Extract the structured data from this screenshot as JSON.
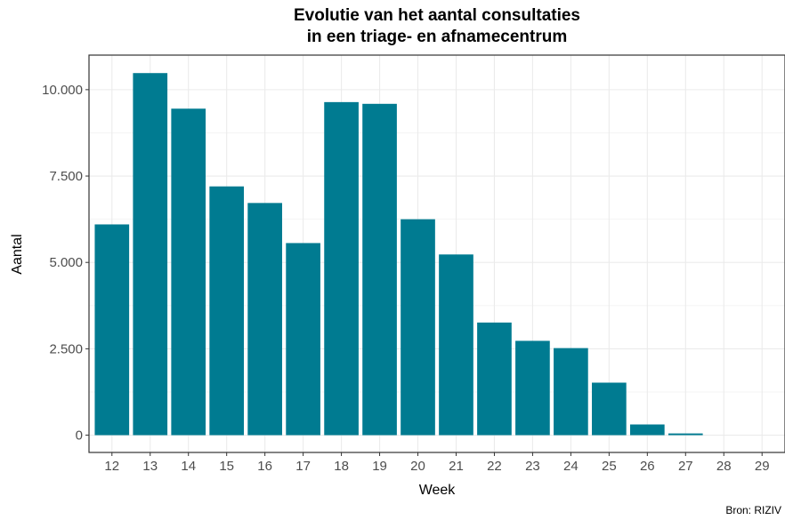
{
  "chart_data": {
    "type": "bar",
    "title_line1": "Evolutie van het aantal consultaties",
    "title_line2": "in een triage- en afnamecentrum",
    "xlabel": "Week",
    "ylabel": "Aantal",
    "categories": [
      "12",
      "13",
      "14",
      "15",
      "16",
      "17",
      "18",
      "19",
      "20",
      "21",
      "22",
      "23",
      "24",
      "25",
      "26",
      "27",
      "28",
      "29"
    ],
    "values": [
      6100,
      10480,
      9450,
      7200,
      6720,
      5560,
      9640,
      9590,
      6250,
      5230,
      3260,
      2730,
      2520,
      1520,
      310,
      50,
      0,
      0
    ],
    "ylim": [
      -500,
      11000
    ],
    "yticks": [
      0,
      2500,
      5000,
      7500,
      10000
    ],
    "ytick_labels": [
      "0",
      "2.500",
      "5.000",
      "7.500",
      "10.000"
    ],
    "bar_color": "#007b91",
    "grid": true,
    "legend": "none",
    "source": "Bron: RIZIV"
  }
}
